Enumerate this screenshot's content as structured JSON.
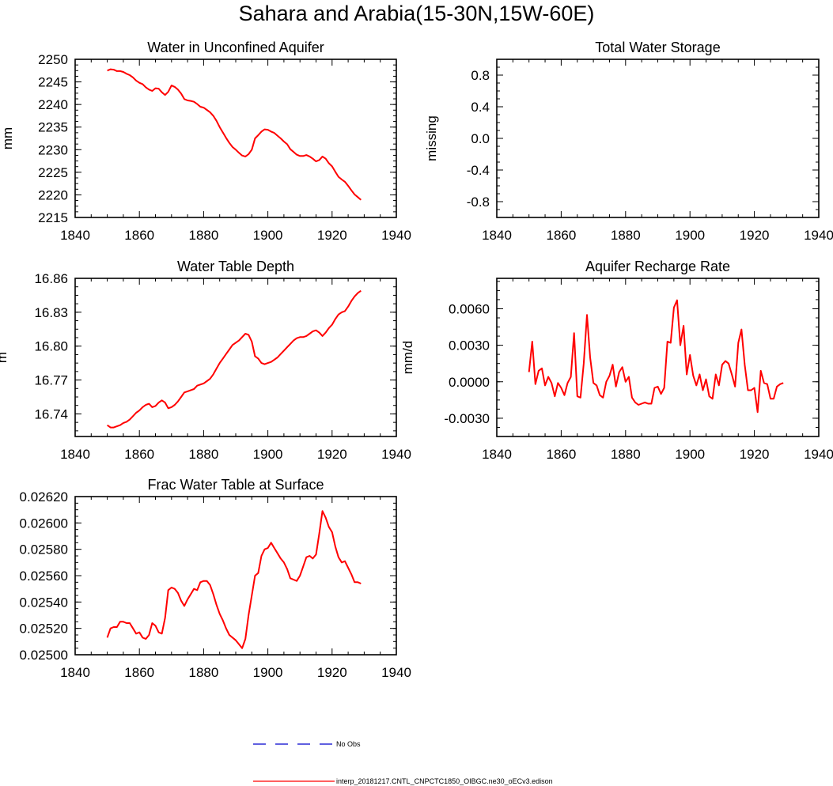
{
  "main_title": "Sahara and Arabia(15-30N,15W-60E)",
  "colors": {
    "model": "#ff0000",
    "obs": "#0000cd",
    "axis": "#000000"
  },
  "legend": [
    {
      "label": "No Obs",
      "style": "dashed",
      "color": "#0000cd"
    },
    {
      "label": "interp_20181217.CNTL_CNPCTC1850_OIBGC.ne30_oECv3.edison",
      "style": "solid",
      "color": "#ff0000"
    }
  ],
  "chart_data": [
    {
      "type": "line",
      "title": "Water in Unconfined Aquifer",
      "xlabel": "",
      "ylabel": "mm",
      "xlim": [
        1840,
        1940
      ],
      "ylim": [
        2215,
        2250
      ],
      "xticks": [
        1840,
        1860,
        1880,
        1900,
        1920,
        1940
      ],
      "yticks": [
        2215,
        2220,
        2225,
        2230,
        2235,
        2240,
        2245,
        2250
      ],
      "ytick_labels": [
        "2215",
        "2220",
        "2225",
        "2230",
        "2235",
        "2240",
        "2245",
        "2250"
      ],
      "series": [
        {
          "name": "interp_20181217.CNTL_CNPCTC1850_OIBGC.ne30_oECv3.edison",
          "x": [
            1850,
            1851,
            1852,
            1853,
            1854,
            1855,
            1856,
            1857,
            1858,
            1859,
            1860,
            1861,
            1862,
            1863,
            1864,
            1865,
            1866,
            1867,
            1868,
            1869,
            1870,
            1871,
            1872,
            1873,
            1874,
            1875,
            1876,
            1877,
            1878,
            1879,
            1880,
            1881,
            1882,
            1883,
            1884,
            1885,
            1886,
            1887,
            1888,
            1889,
            1890,
            1891,
            1892,
            1893,
            1894,
            1895,
            1896,
            1897,
            1898,
            1899,
            1900,
            1901,
            1902,
            1903,
            1904,
            1905,
            1906,
            1907,
            1908,
            1909,
            1910,
            1911,
            1912,
            1913,
            1914,
            1915,
            1916,
            1917,
            1918,
            1919,
            1920,
            1921,
            1922,
            1923,
            1924,
            1925,
            1926,
            1927,
            1928,
            1929
          ],
          "values": [
            2247.5,
            2247.8,
            2247.7,
            2247.4,
            2247.4,
            2247.2,
            2246.8,
            2246.5,
            2246.0,
            2245.3,
            2244.8,
            2244.5,
            2243.8,
            2243.3,
            2243.0,
            2243.6,
            2243.5,
            2242.7,
            2242.1,
            2242.8,
            2244.2,
            2243.9,
            2243.3,
            2242.4,
            2241.2,
            2240.9,
            2240.8,
            2240.6,
            2240.1,
            2239.5,
            2239.3,
            2238.8,
            2238.3,
            2237.5,
            2236.4,
            2235.0,
            2233.8,
            2232.6,
            2231.5,
            2230.6,
            2230.0,
            2229.3,
            2228.7,
            2228.5,
            2229.0,
            2230.0,
            2232.5,
            2233.2,
            2234.0,
            2234.5,
            2234.4,
            2234.0,
            2233.7,
            2233.1,
            2232.5,
            2231.8,
            2231.2,
            2230.1,
            2229.5,
            2228.9,
            2228.6,
            2228.6,
            2228.8,
            2228.5,
            2228.0,
            2227.4,
            2227.7,
            2228.5,
            2228.0,
            2227.0,
            2226.3,
            2225.1,
            2224.0,
            2223.4,
            2222.9,
            2222.0,
            2221.0,
            2220.1,
            2219.5,
            2218.9
          ]
        }
      ]
    },
    {
      "type": "line",
      "title": "Total Water Storage",
      "xlabel": "",
      "ylabel": "missing",
      "xlim": [
        1840,
        1940
      ],
      "ylim": [
        -1.0,
        1.0
      ],
      "xticks": [
        1840,
        1860,
        1880,
        1900,
        1920,
        1940
      ],
      "yticks": [
        -0.8,
        -0.4,
        0.0,
        0.4,
        0.8
      ],
      "ytick_labels": [
        "-0.8",
        "-0.4",
        "0.0",
        "0.4",
        "0.8"
      ],
      "series": []
    },
    {
      "type": "line",
      "title": "Water Table Depth",
      "xlabel": "",
      "ylabel": "m",
      "xlim": [
        1840,
        1940
      ],
      "ylim": [
        16.72,
        16.86
      ],
      "xticks": [
        1840,
        1860,
        1880,
        1900,
        1920,
        1940
      ],
      "yticks": [
        16.74,
        16.77,
        16.8,
        16.83,
        16.86
      ],
      "ytick_labels": [
        "16.74",
        "16.77",
        "16.80",
        "16.83",
        "16.86"
      ],
      "series": [
        {
          "name": "interp_20181217.CNTL_CNPCTC1850_OIBGC.ne30_oECv3.edison",
          "x": [
            1850,
            1851,
            1852,
            1853,
            1854,
            1855,
            1856,
            1857,
            1858,
            1859,
            1860,
            1861,
            1862,
            1863,
            1864,
            1865,
            1866,
            1867,
            1868,
            1869,
            1870,
            1871,
            1872,
            1873,
            1874,
            1875,
            1876,
            1877,
            1878,
            1879,
            1880,
            1881,
            1882,
            1883,
            1884,
            1885,
            1886,
            1887,
            1888,
            1889,
            1890,
            1891,
            1892,
            1893,
            1894,
            1895,
            1896,
            1897,
            1898,
            1899,
            1900,
            1901,
            1902,
            1903,
            1904,
            1905,
            1906,
            1907,
            1908,
            1909,
            1910,
            1911,
            1912,
            1913,
            1914,
            1915,
            1916,
            1917,
            1918,
            1919,
            1920,
            1921,
            1922,
            1923,
            1924,
            1925,
            1926,
            1927,
            1928,
            1929
          ],
          "values": [
            16.73,
            16.728,
            16.728,
            16.729,
            16.73,
            16.732,
            16.733,
            16.735,
            16.738,
            16.741,
            16.743,
            16.746,
            16.748,
            16.749,
            16.746,
            16.747,
            16.75,
            16.752,
            16.75,
            16.745,
            16.746,
            16.748,
            16.751,
            16.755,
            16.759,
            16.76,
            16.761,
            16.762,
            16.765,
            16.766,
            16.767,
            16.769,
            16.771,
            16.775,
            16.78,
            16.785,
            16.789,
            16.793,
            16.797,
            16.801,
            16.803,
            16.805,
            16.808,
            16.811,
            16.81,
            16.804,
            16.791,
            16.789,
            16.785,
            16.784,
            16.785,
            16.786,
            16.788,
            16.79,
            16.793,
            16.796,
            16.799,
            16.802,
            16.805,
            16.807,
            16.808,
            16.808,
            16.809,
            16.811,
            16.813,
            16.814,
            16.812,
            16.809,
            16.812,
            16.816,
            16.819,
            16.824,
            16.828,
            16.83,
            16.831,
            16.835,
            16.84,
            16.844,
            16.847,
            16.849
          ]
        }
      ]
    },
    {
      "type": "line",
      "title": "Aquifer Recharge Rate",
      "xlabel": "",
      "ylabel": "mm/d",
      "xlim": [
        1840,
        1940
      ],
      "ylim": [
        -0.0045,
        0.0085
      ],
      "xticks": [
        1840,
        1860,
        1880,
        1900,
        1920,
        1940
      ],
      "yticks": [
        -0.003,
        0.0,
        0.003,
        0.006
      ],
      "ytick_labels": [
        "-0.0030",
        "0.0000",
        "0.0030",
        "0.0060"
      ],
      "series": [
        {
          "name": "interp_20181217.CNTL_CNPCTC1850_OIBGC.ne30_oECv3.edison",
          "x": [
            1850,
            1851,
            1852,
            1853,
            1854,
            1855,
            1856,
            1857,
            1858,
            1859,
            1860,
            1861,
            1862,
            1863,
            1864,
            1865,
            1866,
            1867,
            1868,
            1869,
            1870,
            1871,
            1872,
            1873,
            1874,
            1875,
            1876,
            1877,
            1878,
            1879,
            1880,
            1881,
            1882,
            1883,
            1884,
            1885,
            1886,
            1887,
            1888,
            1889,
            1890,
            1891,
            1892,
            1893,
            1894,
            1895,
            1896,
            1897,
            1898,
            1899,
            1900,
            1901,
            1902,
            1903,
            1904,
            1905,
            1906,
            1907,
            1908,
            1909,
            1910,
            1911,
            1912,
            1913,
            1914,
            1915,
            1916,
            1917,
            1918,
            1919,
            1920,
            1921,
            1922,
            1923,
            1924,
            1925,
            1926,
            1927,
            1928,
            1929
          ],
          "values": [
            0.0008,
            0.0033,
            -0.0002,
            0.0009,
            0.0011,
            -0.0003,
            0.0004,
            -0.0001,
            -0.0012,
            -0.0001,
            -0.0005,
            -0.0011,
            -0.0001,
            0.0004,
            0.004,
            -0.0012,
            -0.0013,
            0.0015,
            0.0055,
            0.002,
            -0.0001,
            -0.0003,
            -0.0011,
            -0.0013,
            0.0,
            0.0005,
            0.0014,
            -0.0004,
            0.0008,
            0.0012,
            0.0,
            0.0004,
            -0.0013,
            -0.0017,
            -0.0019,
            -0.0018,
            -0.0017,
            -0.0018,
            -0.0018,
            -0.0005,
            -0.0004,
            -0.001,
            -0.0005,
            0.0033,
            0.0032,
            0.0061,
            0.0067,
            0.003,
            0.0046,
            0.0006,
            0.0022,
            0.0005,
            -0.0003,
            0.0006,
            -0.0007,
            0.0002,
            -0.0012,
            -0.0014,
            0.0006,
            -0.0003,
            0.0014,
            0.0017,
            0.0015,
            0.0006,
            -0.0004,
            0.0032,
            0.0043,
            0.0014,
            -0.0007,
            -0.0007,
            -0.0005,
            -0.0025,
            0.0009,
            -0.0001,
            -0.0002,
            -0.0014,
            -0.0014,
            -0.0004,
            -0.0002,
            -0.0001
          ]
        }
      ]
    },
    {
      "type": "line",
      "title": "Frac Water Table at Surface",
      "xlabel": "",
      "ylabel": "",
      "xlim": [
        1840,
        1940
      ],
      "ylim": [
        0.025,
        0.0262
      ],
      "xticks": [
        1840,
        1860,
        1880,
        1900,
        1920,
        1940
      ],
      "yticks": [
        0.025,
        0.0252,
        0.0254,
        0.0256,
        0.0258,
        0.026,
        0.0262
      ],
      "ytick_labels": [
        "0.02500",
        "0.02520",
        "0.02540",
        "0.02560",
        "0.02580",
        "0.02600",
        "0.02620"
      ],
      "series": [
        {
          "name": "interp_20181217.CNTL_CNPCTC1850_OIBGC.ne30_oECv3.edison",
          "x": [
            1850,
            1851,
            1852,
            1853,
            1854,
            1855,
            1856,
            1857,
            1858,
            1859,
            1860,
            1861,
            1862,
            1863,
            1864,
            1865,
            1866,
            1867,
            1868,
            1869,
            1870,
            1871,
            1872,
            1873,
            1874,
            1875,
            1876,
            1877,
            1878,
            1879,
            1880,
            1881,
            1882,
            1883,
            1884,
            1885,
            1886,
            1887,
            1888,
            1889,
            1890,
            1891,
            1892,
            1893,
            1894,
            1895,
            1896,
            1897,
            1898,
            1899,
            1900,
            1901,
            1902,
            1903,
            1904,
            1905,
            1906,
            1907,
            1908,
            1909,
            1910,
            1911,
            1912,
            1913,
            1914,
            1915,
            1916,
            1917,
            1918,
            1919,
            1920,
            1921,
            1922,
            1923,
            1924,
            1925,
            1926,
            1927,
            1928,
            1929
          ],
          "values": [
            0.02513,
            0.0252,
            0.02521,
            0.02521,
            0.02525,
            0.02525,
            0.02524,
            0.02524,
            0.0252,
            0.02516,
            0.02517,
            0.02513,
            0.02512,
            0.02515,
            0.02524,
            0.02522,
            0.02517,
            0.02516,
            0.02528,
            0.02549,
            0.02551,
            0.0255,
            0.02547,
            0.02541,
            0.02537,
            0.02542,
            0.02546,
            0.0255,
            0.02549,
            0.02555,
            0.02556,
            0.02556,
            0.02553,
            0.02546,
            0.02538,
            0.02531,
            0.02526,
            0.0252,
            0.02515,
            0.02513,
            0.02511,
            0.02508,
            0.02505,
            0.02512,
            0.0253,
            0.02545,
            0.0256,
            0.02562,
            0.02575,
            0.0258,
            0.02581,
            0.02585,
            0.02581,
            0.02577,
            0.02573,
            0.0257,
            0.02565,
            0.02558,
            0.02557,
            0.02556,
            0.0256,
            0.02567,
            0.02574,
            0.02575,
            0.02573,
            0.02576,
            0.02592,
            0.02609,
            0.02604,
            0.02597,
            0.02593,
            0.02582,
            0.02574,
            0.0257,
            0.02571,
            0.02566,
            0.02561,
            0.02555,
            0.02555,
            0.02554
          ]
        }
      ]
    }
  ]
}
